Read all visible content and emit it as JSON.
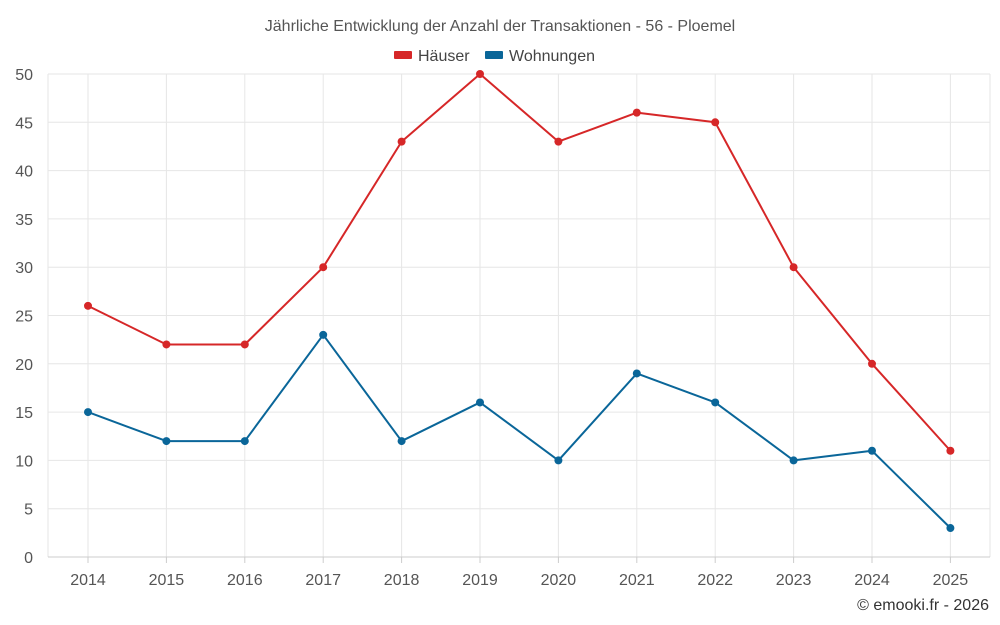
{
  "chart_data": {
    "type": "line",
    "title": "Jährliche Entwicklung der Anzahl der Transaktionen - 56 - Ploemel",
    "categories": [
      "2014",
      "2015",
      "2016",
      "2017",
      "2018",
      "2019",
      "2020",
      "2021",
      "2022",
      "2023",
      "2024",
      "2025"
    ],
    "series": [
      {
        "name": "Häuser",
        "color": "#d62728",
        "values": [
          26,
          22,
          22,
          30,
          43,
          50,
          43,
          46,
          45,
          30,
          20,
          11
        ]
      },
      {
        "name": "Wohnungen",
        "color": "#0a6699",
        "values": [
          15,
          12,
          12,
          23,
          12,
          16,
          10,
          19,
          16,
          10,
          11,
          3
        ]
      }
    ],
    "ylim": [
      0,
      50
    ],
    "yticks": [
      "0",
      "5",
      "10",
      "15",
      "20",
      "25",
      "30",
      "35",
      "40",
      "45",
      "50"
    ],
    "xlabel": "",
    "ylabel": "",
    "grid": true,
    "legend_position": "top-center"
  },
  "credit": "© emooki.fr - 2026"
}
